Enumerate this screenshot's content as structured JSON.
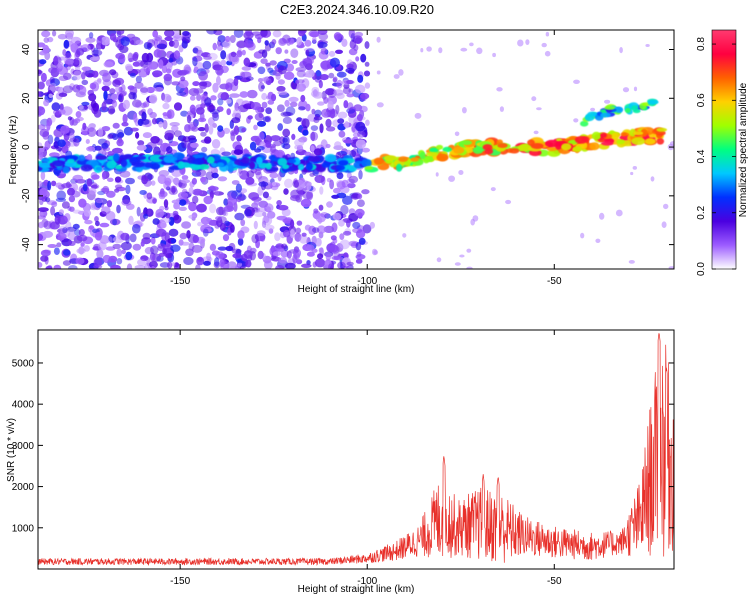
{
  "title": "C2E3.2024.346.10.09.R20",
  "chart_data": [
    {
      "type": "heatmap",
      "xlabel": "Height of straight line (km)",
      "ylabel": "Frequency (Hz)",
      "xlim": [
        -188,
        -18
      ],
      "ylim": [
        -50,
        48
      ],
      "x_ticks": [
        "-150",
        "-100",
        "-50"
      ],
      "y_ticks": [
        "-40",
        "-20",
        "0",
        "20",
        "40"
      ],
      "colorbar": {
        "label": "Normalized spectral amplitude",
        "range": [
          0,
          0.85
        ],
        "ticks": [
          "0.0",
          "0.2",
          "0.4",
          "0.6",
          "0.8"
        ],
        "colors": [
          "#ffffff",
          "#9c5cff",
          "#4a00e0",
          "#0030ff",
          "#00c8ff",
          "#00ff80",
          "#a0ff00",
          "#ffd000",
          "#ff6000",
          "#ff0040",
          "#ff3a70"
        ]
      },
      "noise_region_x": [
        -188,
        -100
      ],
      "noise_color": "#8a3cf0",
      "ridge": [
        {
          "x": -188,
          "y": -7
        },
        {
          "x": -150,
          "y": -6
        },
        {
          "x": -120,
          "y": -7
        },
        {
          "x": -100,
          "y": -7
        },
        {
          "x": -90,
          "y": -6
        },
        {
          "x": -80,
          "y": -2
        },
        {
          "x": -70,
          "y": 0
        },
        {
          "x": -60,
          "y": 0
        },
        {
          "x": -50,
          "y": 0
        },
        {
          "x": -40,
          "y": 2
        },
        {
          "x": -30,
          "y": 4
        },
        {
          "x": -20,
          "y": 5
        }
      ],
      "upper_feature": [
        {
          "x": -42,
          "y": 11
        },
        {
          "x": -35,
          "y": 15
        },
        {
          "x": -28,
          "y": 16
        },
        {
          "x": -22,
          "y": 20
        }
      ]
    },
    {
      "type": "line",
      "xlabel": "Height of straight line (km)",
      "ylabel": "SNR (10 * v/v)",
      "xlim": [
        -188,
        -18
      ],
      "ylim": [
        0,
        5800
      ],
      "x_ticks": [
        "-150",
        "-100",
        "-50"
      ],
      "y_ticks": [
        "1000",
        "2000",
        "3000",
        "4000",
        "5000"
      ],
      "line_color": "#e8302a",
      "envelope": [
        {
          "x": -188,
          "mean": 180,
          "amp": 80
        },
        {
          "x": -110,
          "mean": 180,
          "amp": 80
        },
        {
          "x": -100,
          "mean": 260,
          "amp": 120
        },
        {
          "x": -92,
          "mean": 450,
          "amp": 250
        },
        {
          "x": -86,
          "mean": 700,
          "amp": 400
        },
        {
          "x": -80,
          "mean": 1300,
          "amp": 1100
        },
        {
          "x": -76,
          "mean": 1000,
          "amp": 700
        },
        {
          "x": -70,
          "mean": 1100,
          "amp": 900
        },
        {
          "x": -64,
          "mean": 1000,
          "amp": 900
        },
        {
          "x": -58,
          "mean": 800,
          "amp": 500
        },
        {
          "x": -50,
          "mean": 650,
          "amp": 400
        },
        {
          "x": -40,
          "mean": 550,
          "amp": 350
        },
        {
          "x": -32,
          "mean": 650,
          "amp": 300
        },
        {
          "x": -27,
          "mean": 1200,
          "amp": 1000
        },
        {
          "x": -24,
          "mean": 2300,
          "amp": 2000
        },
        {
          "x": -21,
          "mean": 3000,
          "amp": 2800
        },
        {
          "x": -18,
          "mean": 2400,
          "amp": 2000
        }
      ],
      "peaks": [
        {
          "x": -79.5,
          "y": 2750
        },
        {
          "x": -69,
          "y": 2300
        },
        {
          "x": -65,
          "y": 2250
        },
        {
          "x": -22,
          "y": 5750
        },
        {
          "x": -20,
          "y": 4900
        }
      ]
    }
  ]
}
